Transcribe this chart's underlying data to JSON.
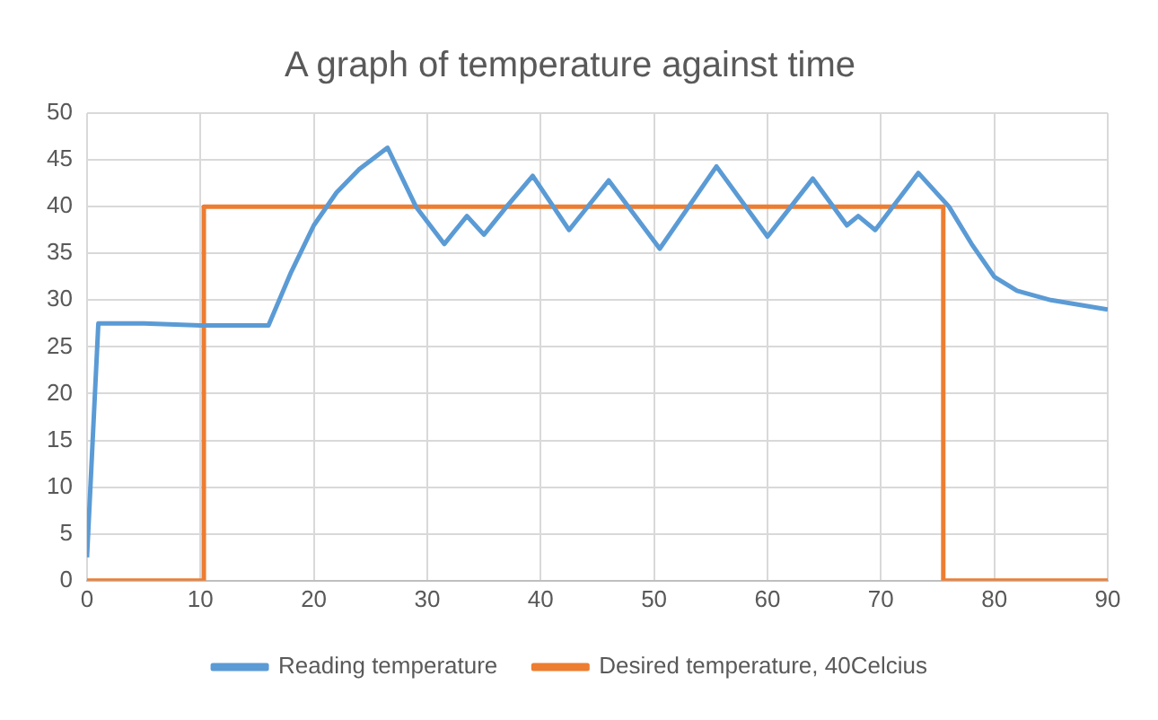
{
  "chart_data": {
    "type": "line",
    "title": "A graph of temperature against time",
    "series": [
      {
        "name": "Reading temperature",
        "color": "#5b9bd5",
        "x": [
          0,
          1,
          5,
          10,
          16,
          18,
          20,
          22,
          24,
          26.5,
          29,
          31.5,
          33.5,
          35,
          37,
          39.3,
          42.5,
          46,
          50.5,
          55.5,
          60,
          64,
          67,
          68,
          69.5,
          73.3,
          76,
          78,
          80,
          82,
          85,
          90
        ],
        "values": [
          2.5,
          27.5,
          27.5,
          27.3,
          27.3,
          33,
          38,
          41.5,
          44,
          46.3,
          40,
          36,
          39,
          37,
          40,
          43.3,
          37.5,
          42.8,
          35.5,
          44.3,
          36.8,
          43,
          38,
          39,
          37.5,
          43.6,
          40,
          36,
          32.5,
          31,
          30,
          29
        ]
      },
      {
        "name": "Desired temperature, 40Celcius",
        "color": "#ed7d31",
        "x": [
          0,
          10.3,
          10.3,
          75.5,
          75.5,
          90
        ],
        "values": [
          0,
          0,
          40,
          40,
          0,
          0
        ]
      }
    ],
    "xlim": [
      0,
      90
    ],
    "xticks": [
      0,
      10,
      20,
      30,
      40,
      50,
      60,
      70,
      80,
      90
    ],
    "ylim": [
      0,
      50
    ],
    "yticks": [
      0,
      5,
      10,
      15,
      20,
      25,
      30,
      35,
      40,
      45,
      50
    ],
    "grid": true,
    "legend": "bottom",
    "marker": "none",
    "line_style": "solid"
  }
}
